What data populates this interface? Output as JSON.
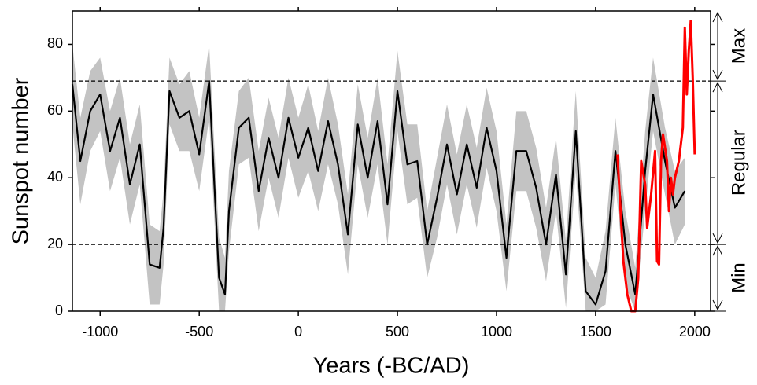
{
  "chart_data": {
    "type": "line",
    "xlabel": "Years (-BC/AD)",
    "ylabel": "Sunspot number",
    "xlim": [
      -1140,
      2080
    ],
    "ylim": [
      0,
      90
    ],
    "xticks": [
      -1000,
      -500,
      0,
      500,
      1000,
      1500,
      2000
    ],
    "yticks": [
      0,
      20,
      40,
      60,
      80
    ],
    "x": [
      -1140,
      -1100,
      -1050,
      -1000,
      -950,
      -900,
      -850,
      -800,
      -750,
      -700,
      -680,
      -650,
      -600,
      -550,
      -500,
      -450,
      -400,
      -370,
      -350,
      -300,
      -250,
      -200,
      -150,
      -100,
      -50,
      0,
      50,
      100,
      150,
      200,
      250,
      300,
      350,
      400,
      450,
      500,
      550,
      600,
      650,
      700,
      750,
      800,
      850,
      900,
      950,
      1000,
      1050,
      1100,
      1150,
      1200,
      1250,
      1300,
      1350,
      1400,
      1450,
      1500,
      1550,
      1600,
      1650,
      1700,
      1750,
      1790,
      1850,
      1900,
      1950
    ],
    "band": {
      "color": "#c3c3c3",
      "upper": [
        80,
        58,
        72,
        76,
        60,
        70,
        50,
        62,
        26,
        24,
        36,
        76,
        68,
        72,
        58,
        80,
        22,
        16,
        42,
        66,
        70,
        48,
        64,
        52,
        70,
        58,
        68,
        54,
        70,
        56,
        35,
        68,
        52,
        70,
        44,
        78,
        56,
        56,
        30,
        46,
        62,
        47,
        62,
        49,
        67,
        54,
        26,
        60,
        60,
        49,
        31,
        52,
        21,
        66,
        16,
        10,
        24,
        58,
        30,
        13,
        54,
        76,
        55,
        42,
        46
      ],
      "lower": [
        56,
        32,
        48,
        54,
        36,
        46,
        26,
        38,
        2,
        2,
        14,
        56,
        48,
        48,
        36,
        58,
        0,
        0,
        18,
        44,
        46,
        24,
        40,
        28,
        46,
        34,
        42,
        30,
        44,
        32,
        11,
        44,
        28,
        44,
        20,
        54,
        32,
        34,
        10,
        22,
        38,
        23,
        38,
        25,
        43,
        30,
        6,
        36,
        36,
        25,
        9,
        30,
        1,
        42,
        0,
        0,
        2,
        38,
        8,
        0,
        30,
        54,
        35,
        20,
        26
      ]
    },
    "series": [
      {
        "color": "#000000",
        "values": [
          68,
          45,
          60,
          65,
          48,
          58,
          38,
          50,
          14,
          13,
          25,
          66,
          58,
          60,
          47,
          69,
          10,
          5,
          30,
          55,
          58,
          36,
          52,
          40,
          58,
          46,
          55,
          42,
          57,
          44,
          23,
          56,
          40,
          57,
          32,
          66,
          44,
          45,
          20,
          34,
          50,
          35,
          50,
          37,
          55,
          42,
          16,
          48,
          48,
          37,
          20,
          41,
          11,
          54,
          6,
          2,
          12,
          48,
          20,
          5,
          42,
          65,
          45,
          31,
          36
        ]
      },
      {
        "color": "#ff0000",
        "x": [
          1610,
          1640,
          1660,
          1680,
          1700,
          1715,
          1730,
          1750,
          1760,
          1780,
          1800,
          1810,
          1820,
          1830,
          1840,
          1860,
          1870,
          1880,
          1890,
          1900,
          1920,
          1940,
          1950,
          1960,
          1970,
          1980,
          1990,
          2000
        ],
        "values": [
          47,
          15,
          5,
          0,
          0,
          10,
          45,
          38,
          25,
          35,
          48,
          15,
          14,
          45,
          53,
          45,
          30,
          40,
          35,
          40,
          45,
          55,
          85,
          65,
          78,
          87,
          70,
          47
        ]
      }
    ],
    "hlines": [
      20,
      69
    ],
    "annotations": [
      {
        "text": "Max",
        "from": 69,
        "to": 90
      },
      {
        "text": "Regular",
        "from": 20,
        "to": 69
      },
      {
        "text": "Min",
        "from": 0,
        "to": 20
      }
    ]
  }
}
